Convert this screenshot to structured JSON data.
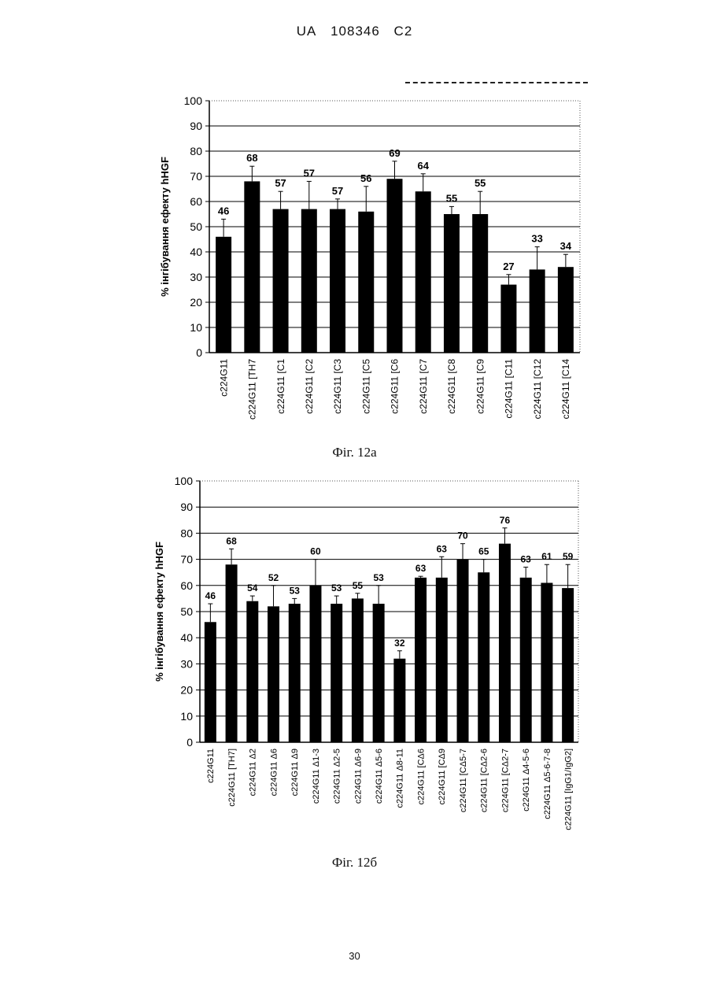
{
  "header": {
    "country": "UA",
    "number": "108346",
    "kind": "C2"
  },
  "page_number": "30",
  "chart_data": [
    {
      "type": "bar",
      "caption": "Фіг. 12а",
      "ylabel": "% інгібування ефекту hHGF",
      "ylim": [
        0,
        100
      ],
      "yticks": [
        0,
        10,
        20,
        30,
        40,
        50,
        60,
        70,
        80,
        90,
        100
      ],
      "grid": true,
      "categories": [
        "c224G11",
        "c224G11 [TH7",
        "c224G11 [C1",
        "c224G11 [C2",
        "c224G11 [C3",
        "c224G11 [C5",
        "c224G11 [C6",
        "c224G11 [C7",
        "c224G11 [C8",
        "c224G11 [C9",
        "c224G11 [C11",
        "c224G11 [C12",
        "c224G11 [C14"
      ],
      "values": [
        46,
        68,
        57,
        57,
        57,
        56,
        69,
        64,
        55,
        55,
        27,
        33,
        34
      ],
      "errors": [
        7,
        6,
        7,
        11,
        4,
        10,
        7,
        7,
        3,
        9,
        4,
        9,
        5
      ]
    },
    {
      "type": "bar",
      "caption": "Фіг. 12б",
      "ylabel": "% інгібування ефекту hHGF",
      "ylim": [
        0,
        100
      ],
      "yticks": [
        0,
        10,
        20,
        30,
        40,
        50,
        60,
        70,
        80,
        90,
        100
      ],
      "grid": true,
      "categories": [
        "c224G11",
        "c224G11 [TH7]",
        "c224G11 Δ2",
        "c224G11 Δ6",
        "c224G11 Δ9",
        "c224G11 Δ1-3",
        "c224G11 Δ2-5",
        "c224G11 Δ6-9",
        "c224G11 Δ5-6",
        "c224G11 Δ8-11",
        "c224G11 [CΔ6",
        "c224G11 [CΔ9",
        "c224G11 [CΔ5-7",
        "c224G11 [CΔ2-6",
        "c224G11 [CΔ2-7",
        "c224G11 Δ4-5-6",
        "c224G11 Δ5-6-7-8",
        "c224G11 [IgG1/IgG2]"
      ],
      "values": [
        46,
        68,
        54,
        52,
        53,
        60,
        53,
        55,
        53,
        32,
        63,
        63,
        70,
        65,
        76,
        63,
        61,
        59
      ],
      "errors": [
        7,
        6,
        2,
        8,
        2,
        10,
        3,
        2,
        7,
        3,
        0.5,
        8,
        6,
        5,
        6,
        4,
        7,
        9
      ]
    }
  ]
}
